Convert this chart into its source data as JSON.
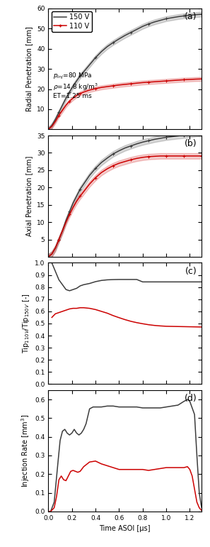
{
  "legend_150V": "150 V",
  "legend_110V": "110 V",
  "color_150V": "#3c3c3c",
  "color_110V": "#cc0000",
  "xlabel": "Time ASOI [μs]",
  "panel_labels": [
    "(a)",
    "(b)",
    "(c)",
    "(d)"
  ],
  "radial_150V_x": [
    0.0,
    0.03,
    0.06,
    0.09,
    0.12,
    0.15,
    0.18,
    0.21,
    0.24,
    0.27,
    0.3,
    0.35,
    0.4,
    0.45,
    0.5,
    0.55,
    0.6,
    0.65,
    0.7,
    0.75,
    0.8,
    0.85,
    0.9,
    0.95,
    1.0,
    1.05,
    1.1,
    1.15,
    1.2,
    1.25,
    1.3
  ],
  "radial_150V_y": [
    0.0,
    2.0,
    5.0,
    8.5,
    12.0,
    15.5,
    18.5,
    21.5,
    24.0,
    26.5,
    28.5,
    32.0,
    35.5,
    38.5,
    41.0,
    43.0,
    44.8,
    46.5,
    48.0,
    49.5,
    51.0,
    52.2,
    53.2,
    54.0,
    54.8,
    55.3,
    55.8,
    56.2,
    56.5,
    56.8,
    57.0
  ],
  "radial_110V_x": [
    0.0,
    0.03,
    0.06,
    0.09,
    0.12,
    0.15,
    0.18,
    0.21,
    0.24,
    0.27,
    0.3,
    0.35,
    0.4,
    0.45,
    0.5,
    0.55,
    0.6,
    0.65,
    0.7,
    0.75,
    0.8,
    0.85,
    0.9,
    0.95,
    1.0,
    1.05,
    1.1,
    1.15,
    1.2,
    1.25,
    1.3
  ],
  "radial_110V_y": [
    0.0,
    1.5,
    4.0,
    7.0,
    9.5,
    12.0,
    14.0,
    15.5,
    16.8,
    17.8,
    18.5,
    19.5,
    20.2,
    20.8,
    21.2,
    21.6,
    22.0,
    22.3,
    22.6,
    22.9,
    23.2,
    23.4,
    23.6,
    23.8,
    24.0,
    24.2,
    24.4,
    24.6,
    24.75,
    24.9,
    25.0
  ],
  "axial_150V_x": [
    0.0,
    0.03,
    0.06,
    0.09,
    0.12,
    0.15,
    0.18,
    0.21,
    0.24,
    0.27,
    0.3,
    0.35,
    0.4,
    0.45,
    0.5,
    0.55,
    0.6,
    0.65,
    0.7,
    0.75,
    0.8,
    0.85,
    0.9,
    0.95,
    1.0,
    1.05,
    1.1,
    1.15,
    1.2,
    1.25,
    1.3
  ],
  "axial_150V_y": [
    0.0,
    0.8,
    2.5,
    5.0,
    7.5,
    10.5,
    13.0,
    15.5,
    17.5,
    19.5,
    21.0,
    23.5,
    25.5,
    27.2,
    28.5,
    29.7,
    30.6,
    31.4,
    32.0,
    32.6,
    33.1,
    33.5,
    33.9,
    34.2,
    34.5,
    34.7,
    34.9,
    35.1,
    35.3,
    35.5,
    35.6
  ],
  "axial_110V_x": [
    0.0,
    0.03,
    0.06,
    0.09,
    0.12,
    0.15,
    0.18,
    0.21,
    0.24,
    0.27,
    0.3,
    0.35,
    0.4,
    0.45,
    0.5,
    0.55,
    0.6,
    0.65,
    0.7,
    0.75,
    0.8,
    0.85,
    0.9,
    0.95,
    1.0,
    1.05,
    1.1,
    1.15,
    1.2,
    1.25,
    1.3
  ],
  "axial_110V_y": [
    0.0,
    0.8,
    2.5,
    5.0,
    7.5,
    10.0,
    12.2,
    14.2,
    16.0,
    17.5,
    18.8,
    21.0,
    22.8,
    24.3,
    25.4,
    26.3,
    27.0,
    27.5,
    28.0,
    28.4,
    28.7,
    28.9,
    29.0,
    29.1,
    29.1,
    29.1,
    29.1,
    29.1,
    29.1,
    29.1,
    29.1
  ],
  "ratio_gray_x": [
    0.03,
    0.06,
    0.09,
    0.12,
    0.15,
    0.18,
    0.21,
    0.24,
    0.27,
    0.3,
    0.35,
    0.4,
    0.45,
    0.5,
    0.55,
    0.6,
    0.65,
    0.7,
    0.75,
    0.8,
    0.85,
    0.9,
    0.95,
    1.0,
    1.05,
    1.1,
    1.15,
    1.2,
    1.25,
    1.3
  ],
  "ratio_gray_y": [
    1.0,
    0.93,
    0.86,
    0.82,
    0.78,
    0.77,
    0.78,
    0.79,
    0.81,
    0.82,
    0.83,
    0.845,
    0.855,
    0.86,
    0.862,
    0.863,
    0.863,
    0.863,
    0.863,
    0.843,
    0.843,
    0.843,
    0.843,
    0.843,
    0.843,
    0.843,
    0.843,
    0.843,
    0.843,
    0.843
  ],
  "ratio_red_x": [
    0.03,
    0.06,
    0.09,
    0.12,
    0.15,
    0.18,
    0.21,
    0.24,
    0.27,
    0.3,
    0.35,
    0.4,
    0.45,
    0.5,
    0.55,
    0.6,
    0.65,
    0.7,
    0.75,
    0.8,
    0.85,
    0.9,
    0.95,
    1.0,
    1.05,
    1.1,
    1.15,
    1.2,
    1.25,
    1.3
  ],
  "ratio_red_y": [
    0.55,
    0.58,
    0.59,
    0.6,
    0.61,
    0.62,
    0.625,
    0.625,
    0.63,
    0.63,
    0.625,
    0.615,
    0.6,
    0.585,
    0.565,
    0.548,
    0.532,
    0.518,
    0.507,
    0.498,
    0.49,
    0.484,
    0.48,
    0.477,
    0.476,
    0.475,
    0.474,
    0.473,
    0.472,
    0.471
  ],
  "inj_150V_x": [
    0.0,
    0.02,
    0.05,
    0.08,
    0.1,
    0.12,
    0.14,
    0.16,
    0.18,
    0.2,
    0.22,
    0.24,
    0.26,
    0.28,
    0.3,
    0.32,
    0.35,
    0.38,
    0.4,
    0.42,
    0.45,
    0.5,
    0.55,
    0.6,
    0.65,
    0.7,
    0.75,
    0.8,
    0.85,
    0.9,
    0.95,
    1.0,
    1.05,
    1.1,
    1.15,
    1.18,
    1.2,
    1.22,
    1.24,
    1.26,
    1.28,
    1.3,
    1.32
  ],
  "inj_150V_y": [
    0.0,
    0.0,
    0.05,
    0.25,
    0.38,
    0.43,
    0.44,
    0.42,
    0.41,
    0.42,
    0.44,
    0.42,
    0.41,
    0.42,
    0.44,
    0.47,
    0.55,
    0.56,
    0.56,
    0.56,
    0.56,
    0.565,
    0.565,
    0.56,
    0.56,
    0.56,
    0.56,
    0.555,
    0.555,
    0.555,
    0.555,
    0.56,
    0.565,
    0.57,
    0.59,
    0.6,
    0.59,
    0.555,
    0.52,
    0.3,
    0.1,
    0.02,
    0.0
  ],
  "inj_110V_x": [
    0.0,
    0.02,
    0.05,
    0.07,
    0.09,
    0.11,
    0.13,
    0.15,
    0.17,
    0.19,
    0.21,
    0.23,
    0.25,
    0.27,
    0.3,
    0.35,
    0.4,
    0.45,
    0.5,
    0.55,
    0.6,
    0.65,
    0.7,
    0.75,
    0.8,
    0.85,
    0.9,
    0.95,
    1.0,
    1.05,
    1.1,
    1.15,
    1.18,
    1.2,
    1.22,
    1.24,
    1.26,
    1.28,
    1.3,
    1.32
  ],
  "inj_110V_y": [
    0.0,
    0.0,
    0.02,
    0.08,
    0.17,
    0.19,
    0.17,
    0.165,
    0.19,
    0.215,
    0.22,
    0.215,
    0.21,
    0.215,
    0.24,
    0.265,
    0.27,
    0.255,
    0.245,
    0.235,
    0.225,
    0.225,
    0.225,
    0.225,
    0.225,
    0.22,
    0.225,
    0.23,
    0.235,
    0.235,
    0.235,
    0.235,
    0.24,
    0.225,
    0.19,
    0.12,
    0.05,
    0.02,
    0.005,
    0.0
  ],
  "radial_ylim": [
    0,
    60
  ],
  "radial_yticks": [
    10,
    20,
    30,
    40,
    50,
    60
  ],
  "axial_ylim": [
    0,
    35
  ],
  "axial_yticks": [
    5,
    10,
    15,
    20,
    25,
    30,
    35
  ],
  "ratio_ylim": [
    0.0,
    1.0
  ],
  "ratio_yticks": [
    0.0,
    0.1,
    0.2,
    0.3,
    0.4,
    0.5,
    0.6,
    0.7,
    0.8,
    0.9,
    1.0
  ],
  "inj_ylim": [
    0.0,
    0.65
  ],
  "inj_yticks": [
    0.0,
    0.1,
    0.2,
    0.3,
    0.4,
    0.5,
    0.6
  ],
  "xlim": [
    0.0,
    1.3
  ],
  "xticks": [
    0.0,
    0.2,
    0.4,
    0.6,
    0.8,
    1.0,
    1.2
  ]
}
